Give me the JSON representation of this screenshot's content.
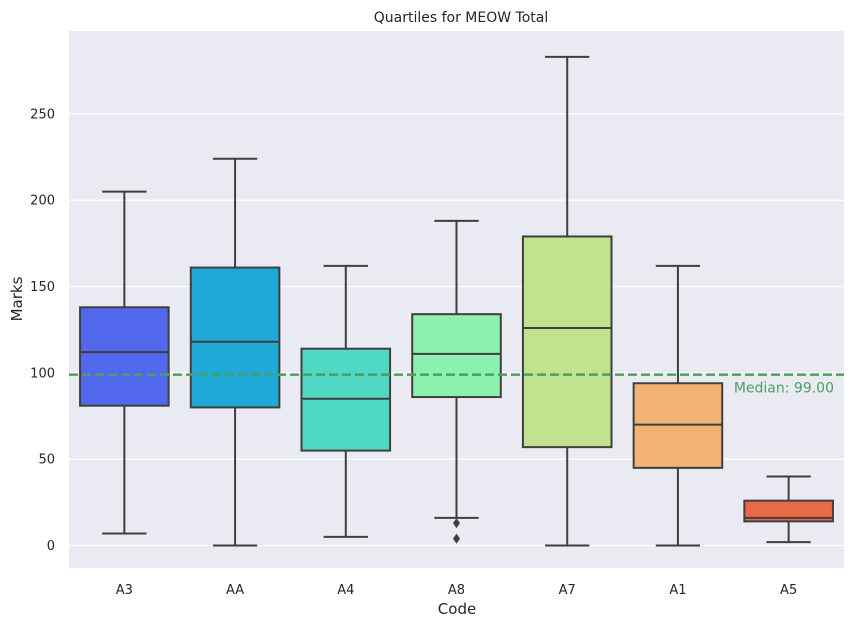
{
  "chart_data": {
    "type": "box",
    "title": "Quartiles for MEOW Total",
    "xlabel": "Code",
    "ylabel": "Marks",
    "ylim": [
      -13,
      298
    ],
    "yticks": [
      0,
      50,
      100,
      150,
      200,
      250
    ],
    "grid": true,
    "boxes": [
      {
        "category": "A3",
        "whisker_low": 7,
        "q1": 81,
        "median": 112,
        "q3": 138,
        "whisker_high": 205,
        "fliers": [],
        "color": "#5168EC"
      },
      {
        "category": "AA",
        "whisker_low": 0,
        "q1": 80,
        "median": 118,
        "q3": 161,
        "whisker_high": 224,
        "fliers": [],
        "color": "#1EA9D6"
      },
      {
        "category": "A4",
        "whisker_low": 5,
        "q1": 55,
        "median": 85,
        "q3": 114,
        "whisker_high": 162,
        "fliers": [],
        "color": "#4FD8C4"
      },
      {
        "category": "A8",
        "whisker_low": 16,
        "q1": 86,
        "median": 111,
        "q3": 134,
        "whisker_high": 188,
        "fliers": [
          13,
          4
        ],
        "color": "#8CF0AE"
      },
      {
        "category": "A7",
        "whisker_low": 0,
        "q1": 57,
        "median": 126,
        "q3": 179,
        "whisker_high": 283,
        "fliers": [],
        "color": "#C1E28E"
      },
      {
        "category": "A1",
        "whisker_low": 0,
        "q1": 45,
        "median": 70,
        "q3": 94,
        "whisker_high": 162,
        "fliers": [],
        "color": "#F2B273"
      },
      {
        "category": "A5",
        "whisker_low": 2,
        "q1": 14,
        "median": 16,
        "q3": 26,
        "whisker_high": 40,
        "fliers": [],
        "color": "#E96A46"
      }
    ],
    "reference_line": {
      "value": 99,
      "label": "Median: 99.00",
      "color": "#4C9F5E",
      "style": "dashed"
    },
    "colors": {
      "background": "#EAEAF2",
      "grid": "#FFFFFF",
      "box_edge": "#3F3F3F"
    }
  }
}
